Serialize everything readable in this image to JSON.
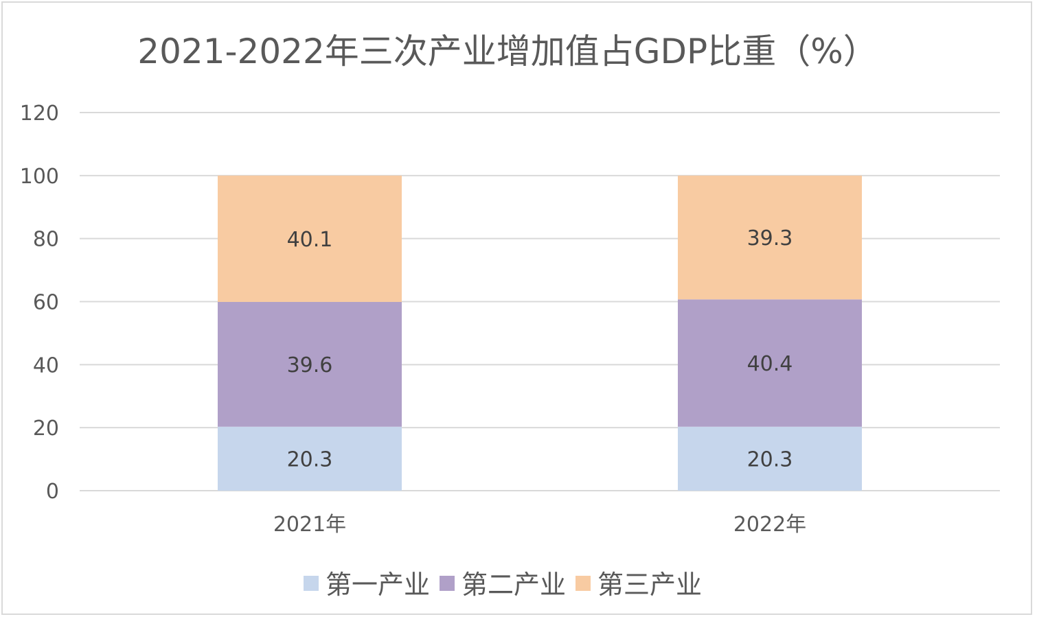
{
  "chart_data": {
    "type": "bar",
    "stacked": true,
    "title": "2021-2022年三次产业增加值占GDP比重（%）",
    "categories": [
      "2021年",
      "2022年"
    ],
    "series": [
      {
        "name": "第一产业",
        "values": [
          20.3,
          20.3
        ],
        "color": "#c6d6ec"
      },
      {
        "name": "第二产业",
        "values": [
          39.6,
          40.4
        ],
        "color": "#b0a0c8"
      },
      {
        "name": "第三产业",
        "values": [
          40.1,
          39.3
        ],
        "color": "#f8cba2"
      }
    ],
    "ylim": [
      0,
      120
    ],
    "yticks": [
      0,
      20,
      40,
      60,
      80,
      100,
      120
    ],
    "grid": true,
    "legend_position": "bottom",
    "data_labels": true
  }
}
